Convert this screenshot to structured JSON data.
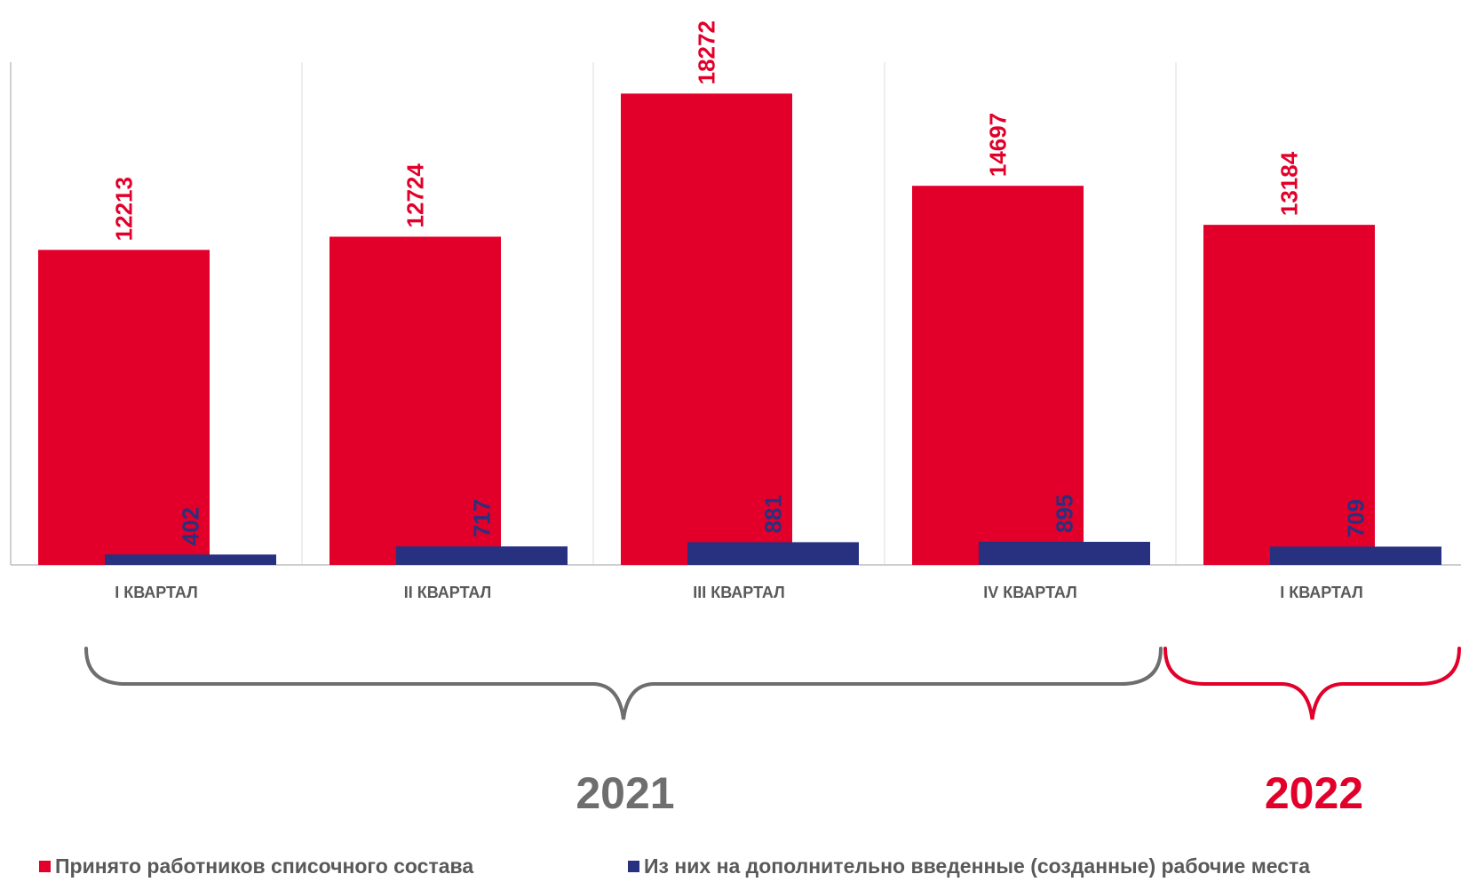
{
  "chart_data": {
    "type": "bar",
    "categories": [
      "I КВАРТАЛ",
      "II КВАРТАЛ",
      "III КВАРТАЛ",
      "IV КВАРТАЛ",
      "I КВАРТАЛ"
    ],
    "series": [
      {
        "name": "Принято работников списочного состава",
        "color": "#E2002A",
        "values": [
          12213,
          12724,
          18272,
          14697,
          13184
        ]
      },
      {
        "name": "Из них на дополнительно введенные (созданные) рабочие места",
        "color": "#27317F",
        "values": [
          402,
          717,
          881,
          895,
          709
        ]
      }
    ],
    "ylim": [
      0,
      21900
    ],
    "groups": [
      {
        "label": "2021",
        "from": 0,
        "to": 3,
        "color": "#6E6E6E"
      },
      {
        "label": "2022",
        "from": 4,
        "to": 4,
        "color": "#E2002A"
      }
    ],
    "legend_position": "bottom",
    "grid": false
  }
}
